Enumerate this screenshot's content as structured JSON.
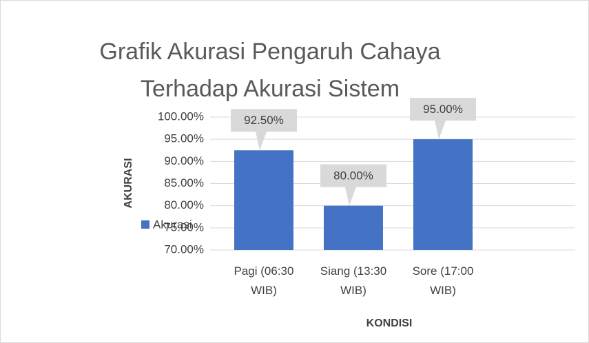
{
  "chart_data": {
    "type": "bar",
    "title": [
      "Grafik Akurasi Pengaruh Cahaya",
      "Terhadap Akurasi Sistem"
    ],
    "categories": [
      "Pagi (06:30 WIB)",
      "Siang (13:30 WIB)",
      "Sore (17:00 WIB)"
    ],
    "series": [
      {
        "name": "Akurasi",
        "color": "#4472c4",
        "values": [
          92.5,
          80,
          95
        ],
        "value_labels": [
          "92.50%",
          "80.00%",
          "95.00%"
        ]
      }
    ],
    "ylim": [
      70,
      100
    ],
    "yticks": [
      {
        "value": 70,
        "label": "70.00%"
      },
      {
        "value": 75,
        "label": "75.00%"
      },
      {
        "value": 80,
        "label": "80.00%"
      },
      {
        "value": 85,
        "label": "85.00%"
      },
      {
        "value": 90,
        "label": "90.00%"
      },
      {
        "value": 95,
        "label": "95.00%"
      },
      {
        "value": 100,
        "label": "100.00%"
      }
    ],
    "ylabel": "AKURASI",
    "xlabel": "KONDISI",
    "grid": true,
    "legend": "left"
  }
}
